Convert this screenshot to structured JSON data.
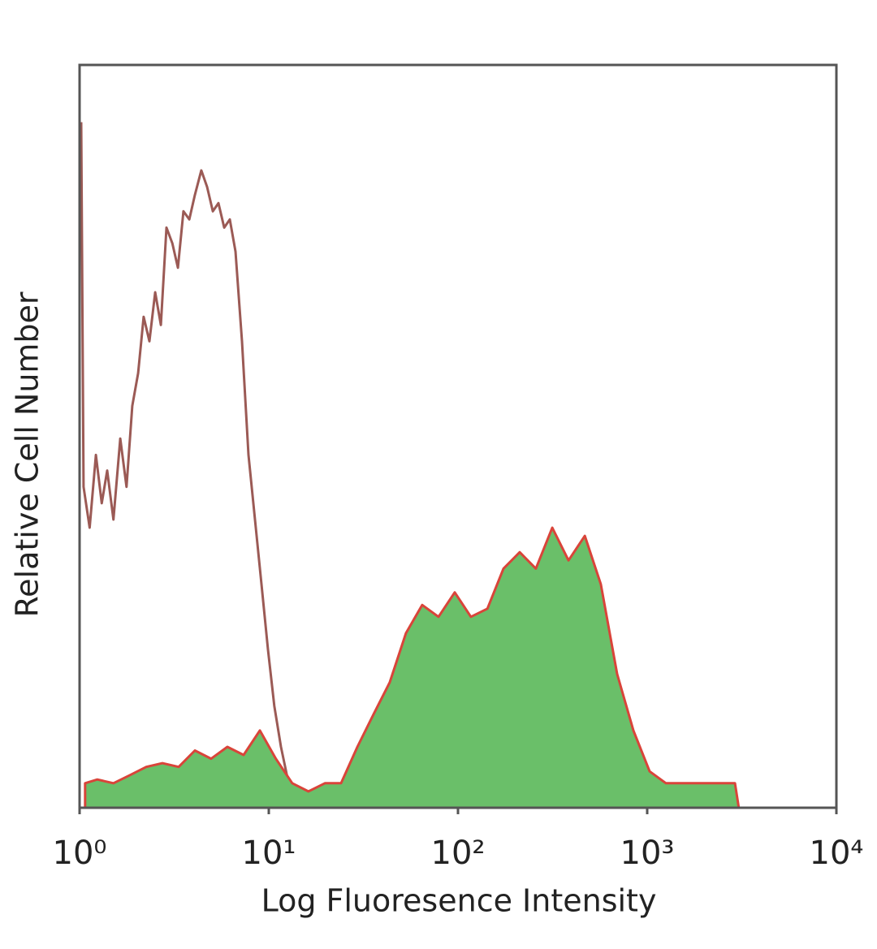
{
  "chart_data": {
    "type": "histogram-overlay",
    "x_label": "Log Fluoresence Intensity",
    "y_label": "Relative Cell Number",
    "xscale": "log",
    "xlim": [
      1,
      10000
    ],
    "xticks": [
      {
        "value": 1,
        "label": "10⁰"
      },
      {
        "value": 10,
        "label": "10¹"
      },
      {
        "value": 100,
        "label": "10²"
      },
      {
        "value": 1000,
        "label": "10³"
      },
      {
        "value": 10000,
        "label": "10⁴"
      }
    ],
    "ylim": [
      0,
      100
    ],
    "series": [
      {
        "color": "#9b5a55",
        "fill": null,
        "x": [
          1.02,
          1.05,
          1.13,
          1.22,
          1.31,
          1.4,
          1.51,
          1.64,
          1.77,
          1.9,
          2.04,
          2.18,
          2.34,
          2.51,
          2.69,
          2.88,
          3.09,
          3.31,
          3.54,
          3.8,
          4.07,
          4.4,
          4.72,
          5.06,
          5.42,
          5.81,
          6.22,
          6.67,
          7.22,
          7.81,
          8.45,
          9.15,
          9.9,
          10.7,
          11.6,
          12.6,
          13.6,
          14.7,
          16.2,
          19.8,
          53.1,
          10000
        ],
        "values": [
          92.3,
          43.2,
          37.7,
          47.5,
          41.0,
          45.4,
          38.8,
          49.7,
          43.2,
          54.1,
          58.5,
          66.1,
          62.8,
          69.4,
          65.0,
          78.1,
          76.0,
          72.7,
          80.3,
          79.2,
          82.5,
          85.8,
          83.6,
          80.3,
          81.4,
          78.1,
          79.2,
          74.9,
          62.8,
          47.5,
          38.8,
          30.1,
          21.3,
          13.7,
          8.2,
          3.8,
          1.1,
          0.2,
          0.2,
          0,
          0,
          0
        ]
      },
      {
        "color": "#d9443a",
        "fill": "#6abf69",
        "x": [
          1.07,
          1.24,
          1.51,
          1.85,
          2.25,
          2.74,
          3.34,
          4.07,
          4.96,
          6.04,
          7.36,
          8.97,
          10.9,
          13.3,
          16.2,
          19.8,
          24.1,
          29.4,
          35.8,
          43.6,
          53.1,
          64.7,
          78.9,
          96.1,
          117,
          143,
          174,
          212,
          258,
          315,
          384,
          468,
          569,
          694,
          845,
          1030,
          1256,
          1687,
          2270,
          2910,
          3050
        ],
        "values": [
          3.3,
          3.8,
          3.3,
          4.4,
          5.5,
          6.0,
          5.5,
          7.7,
          6.6,
          8.2,
          7.1,
          10.4,
          6.6,
          3.3,
          2.2,
          3.3,
          3.3,
          8.2,
          12.6,
          16.9,
          23.5,
          27.3,
          25.7,
          29.0,
          25.7,
          26.8,
          32.2,
          34.4,
          32.2,
          37.7,
          33.3,
          36.6,
          30.1,
          18.0,
          10.4,
          4.9,
          3.3,
          3.3,
          3.3,
          3.3,
          0
        ]
      }
    ]
  }
}
